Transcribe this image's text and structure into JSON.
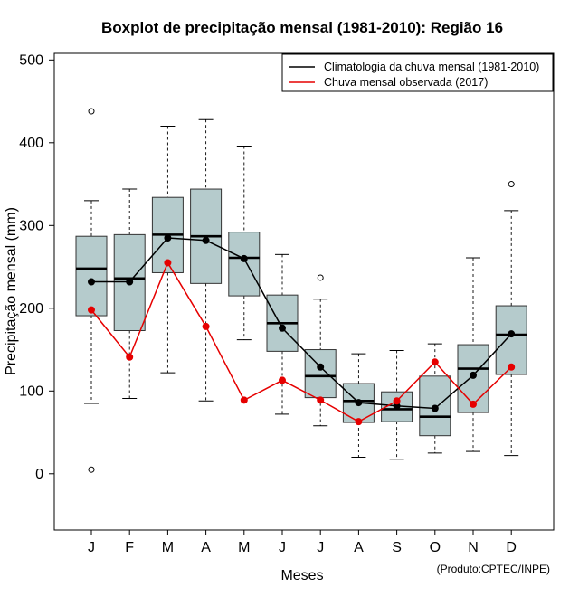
{
  "chart_data": {
    "type": "boxplot",
    "title": "Boxplot de precipitação mensal (1981-2010): Região 16",
    "xlabel": "Meses",
    "ylabel": "Precipitação mensal (mm)",
    "credit": "(Produto:CPTEC/INPE)",
    "ylim": [
      -68,
      508
    ],
    "yticks": [
      0,
      100,
      200,
      300,
      400,
      500
    ],
    "categories": [
      "J",
      "F",
      "M",
      "A",
      "M",
      "J",
      "J",
      "A",
      "S",
      "O",
      "N",
      "D"
    ],
    "boxes": [
      {
        "low": 85,
        "q1": 191,
        "median": 248,
        "q3": 287,
        "high": 330,
        "outliers": [
          438,
          5
        ]
      },
      {
        "low": 91,
        "q1": 173,
        "median": 236,
        "q3": 289,
        "high": 344,
        "outliers": []
      },
      {
        "low": 122,
        "q1": 243,
        "median": 289,
        "q3": 334,
        "high": 420,
        "outliers": []
      },
      {
        "low": 88,
        "q1": 230,
        "median": 287,
        "q3": 344,
        "high": 428,
        "outliers": []
      },
      {
        "low": 162,
        "q1": 215,
        "median": 261,
        "q3": 292,
        "high": 396,
        "outliers": []
      },
      {
        "low": 72,
        "q1": 148,
        "median": 182,
        "q3": 216,
        "high": 265,
        "outliers": []
      },
      {
        "low": 58,
        "q1": 92,
        "median": 118,
        "q3": 150,
        "high": 211,
        "outliers": [
          237
        ]
      },
      {
        "low": 20,
        "q1": 62,
        "median": 88,
        "q3": 109,
        "high": 145,
        "outliers": []
      },
      {
        "low": 17,
        "q1": 63,
        "median": 78,
        "q3": 99,
        "high": 149,
        "outliers": []
      },
      {
        "low": 25,
        "q1": 46,
        "median": 69,
        "q3": 118,
        "high": 157,
        "outliers": []
      },
      {
        "low": 27,
        "q1": 74,
        "median": 127,
        "q3": 156,
        "high": 261,
        "outliers": []
      },
      {
        "low": 22,
        "q1": 120,
        "median": 168,
        "q3": 203,
        "high": 318,
        "outliers": [
          350
        ]
      }
    ],
    "series": [
      {
        "name": "Climatologia da chuva mensal (1981-2010)",
        "color": "#000000",
        "values": [
          232,
          232,
          285,
          282,
          260,
          176,
          129,
          86,
          82,
          79,
          119,
          169
        ]
      },
      {
        "name": "Chuva mensal observada (2017)",
        "color": "#e60000",
        "values": [
          198,
          141,
          255,
          178,
          89,
          113,
          89,
          63,
          88,
          135,
          84,
          129
        ]
      }
    ],
    "box_color": "#b5cbcc",
    "legend_position": "top-right"
  }
}
